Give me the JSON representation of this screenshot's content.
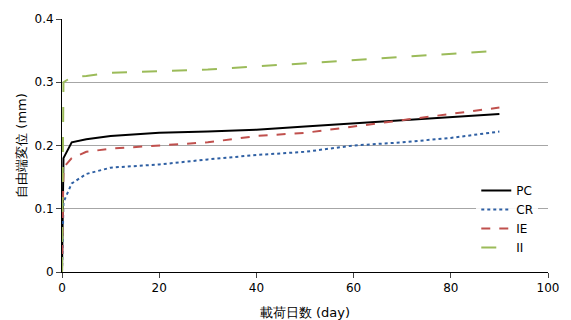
{
  "chart_data": {
    "type": "line",
    "x_label": "載荷日数 (day)",
    "y_label": "自由端変位 (mm)",
    "x": [
      0,
      0.3,
      2,
      5,
      10,
      20,
      30,
      40,
      50,
      60,
      70,
      80,
      90
    ],
    "series": [
      {
        "name": "PC",
        "color": "#000000",
        "line_style": "solid",
        "values": [
          0,
          0.18,
          0.205,
          0.21,
          0.215,
          0.22,
          0.222,
          0.225,
          0.23,
          0.235,
          0.24,
          0.245,
          0.25
        ]
      },
      {
        "name": "CR",
        "color": "#2e5fa3",
        "line_style": "dot",
        "values": [
          0,
          0.11,
          0.14,
          0.155,
          0.165,
          0.17,
          0.178,
          0.185,
          0.19,
          0.2,
          0.205,
          0.212,
          0.222
        ]
      },
      {
        "name": "IE",
        "color": "#c0504d",
        "line_style": "dash",
        "values": [
          0,
          0.165,
          0.18,
          0.19,
          0.195,
          0.2,
          0.205,
          0.215,
          0.22,
          0.23,
          0.24,
          0.25,
          0.26
        ]
      },
      {
        "name": "II",
        "color": "#9bbb59",
        "line_style": "longdash",
        "values": [
          0,
          0.3,
          0.308,
          0.31,
          0.315,
          0.318,
          0.32,
          0.325,
          0.33,
          0.335,
          0.34,
          0.345,
          0.35
        ]
      }
    ],
    "xlim": [
      0,
      100
    ],
    "xticks": [
      0,
      20,
      40,
      60,
      80,
      100
    ],
    "ylim": [
      0,
      0.4
    ],
    "yticks": [
      0,
      0.1,
      0.2,
      0.3,
      0.4
    ],
    "grid": true,
    "legend": "lower right"
  }
}
